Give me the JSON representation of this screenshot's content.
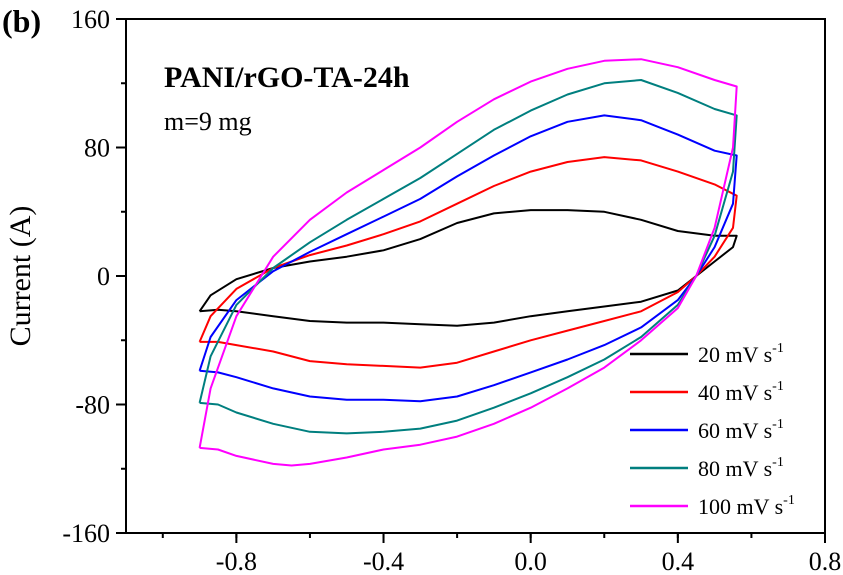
{
  "panel_label": "(b)",
  "chart_data": {
    "type": "line",
    "title": "PANI/rGO-TA-24h",
    "subtitle": "m=9 mg",
    "xlabel": "",
    "ylabel": "Current (A)",
    "xlim": [
      -1.1,
      0.8
    ],
    "ylim": [
      -160,
      160
    ],
    "x_ticks": [
      -0.8,
      -0.4,
      0.0,
      0.4,
      0.8
    ],
    "x_tick_labels": [
      "-0.8",
      "-0.4",
      "0.0",
      "0.4",
      "0.8"
    ],
    "y_ticks": [
      -160,
      -80,
      0,
      80,
      160
    ],
    "y_tick_labels": [
      "-160",
      "-80",
      "0",
      "80",
      "160"
    ],
    "grid": false,
    "legend_position": "bottom-right",
    "series": [
      {
        "name": "20 mV s",
        "unit_sup": "-1",
        "color": "#000000",
        "points": [
          [
            -0.9,
            -22
          ],
          [
            -0.85,
            -21
          ],
          [
            -0.8,
            -22
          ],
          [
            -0.7,
            -25
          ],
          [
            -0.6,
            -28
          ],
          [
            -0.5,
            -29
          ],
          [
            -0.4,
            -29
          ],
          [
            -0.3,
            -30
          ],
          [
            -0.2,
            -31
          ],
          [
            -0.1,
            -29
          ],
          [
            0.0,
            -25
          ],
          [
            0.1,
            -22
          ],
          [
            0.2,
            -19
          ],
          [
            0.3,
            -16
          ],
          [
            0.4,
            -9
          ],
          [
            0.45,
            0
          ],
          [
            0.5,
            9
          ],
          [
            0.55,
            18
          ],
          [
            0.56,
            25
          ],
          [
            0.5,
            25
          ],
          [
            0.4,
            28
          ],
          [
            0.3,
            35
          ],
          [
            0.2,
            40
          ],
          [
            0.1,
            41
          ],
          [
            0.0,
            41
          ],
          [
            -0.1,
            39
          ],
          [
            -0.2,
            33
          ],
          [
            -0.3,
            23
          ],
          [
            -0.4,
            16
          ],
          [
            -0.5,
            12
          ],
          [
            -0.6,
            9
          ],
          [
            -0.7,
            5
          ],
          [
            -0.8,
            -2
          ],
          [
            -0.87,
            -12
          ],
          [
            -0.9,
            -22
          ]
        ]
      },
      {
        "name": "40 mV s",
        "unit_sup": "-1",
        "color": "#ff0000",
        "points": [
          [
            -0.9,
            -41
          ],
          [
            -0.85,
            -41
          ],
          [
            -0.8,
            -43
          ],
          [
            -0.7,
            -47
          ],
          [
            -0.6,
            -53
          ],
          [
            -0.5,
            -55
          ],
          [
            -0.4,
            -56
          ],
          [
            -0.3,
            -57
          ],
          [
            -0.2,
            -54
          ],
          [
            -0.1,
            -47
          ],
          [
            0.0,
            -40
          ],
          [
            0.1,
            -34
          ],
          [
            0.2,
            -28
          ],
          [
            0.3,
            -22
          ],
          [
            0.4,
            -10
          ],
          [
            0.45,
            0
          ],
          [
            0.5,
            12
          ],
          [
            0.55,
            30
          ],
          [
            0.56,
            50
          ],
          [
            0.5,
            57
          ],
          [
            0.4,
            65
          ],
          [
            0.3,
            72
          ],
          [
            0.2,
            74
          ],
          [
            0.1,
            71
          ],
          [
            0.0,
            65
          ],
          [
            -0.1,
            56
          ],
          [
            -0.2,
            45
          ],
          [
            -0.3,
            34
          ],
          [
            -0.4,
            26
          ],
          [
            -0.5,
            19
          ],
          [
            -0.6,
            13
          ],
          [
            -0.7,
            5
          ],
          [
            -0.8,
            -8
          ],
          [
            -0.87,
            -25
          ],
          [
            -0.9,
            -41
          ]
        ]
      },
      {
        "name": "60 mV s",
        "unit_sup": "-1",
        "color": "#0000ff",
        "points": [
          [
            -0.9,
            -59
          ],
          [
            -0.85,
            -60
          ],
          [
            -0.8,
            -63
          ],
          [
            -0.7,
            -70
          ],
          [
            -0.6,
            -75
          ],
          [
            -0.5,
            -77
          ],
          [
            -0.4,
            -77
          ],
          [
            -0.3,
            -78
          ],
          [
            -0.2,
            -75
          ],
          [
            -0.1,
            -68
          ],
          [
            0.0,
            -60
          ],
          [
            0.1,
            -52
          ],
          [
            0.2,
            -43
          ],
          [
            0.3,
            -32
          ],
          [
            0.4,
            -15
          ],
          [
            0.45,
            0
          ],
          [
            0.5,
            18
          ],
          [
            0.55,
            45
          ],
          [
            0.56,
            75
          ],
          [
            0.5,
            78
          ],
          [
            0.4,
            88
          ],
          [
            0.3,
            97
          ],
          [
            0.2,
            100
          ],
          [
            0.1,
            96
          ],
          [
            0.0,
            87
          ],
          [
            -0.1,
            75
          ],
          [
            -0.2,
            62
          ],
          [
            -0.3,
            48
          ],
          [
            -0.4,
            37
          ],
          [
            -0.5,
            26
          ],
          [
            -0.6,
            15
          ],
          [
            -0.7,
            3
          ],
          [
            -0.8,
            -15
          ],
          [
            -0.87,
            -38
          ],
          [
            -0.9,
            -59
          ]
        ]
      },
      {
        "name": "80 mV s",
        "unit_sup": "-1",
        "color": "#007f7f",
        "points": [
          [
            -0.9,
            -79
          ],
          [
            -0.85,
            -80
          ],
          [
            -0.8,
            -85
          ],
          [
            -0.7,
            -92
          ],
          [
            -0.6,
            -97
          ],
          [
            -0.5,
            -98
          ],
          [
            -0.4,
            -97
          ],
          [
            -0.3,
            -95
          ],
          [
            -0.2,
            -90
          ],
          [
            -0.1,
            -82
          ],
          [
            0.0,
            -73
          ],
          [
            0.1,
            -63
          ],
          [
            0.2,
            -52
          ],
          [
            0.3,
            -38
          ],
          [
            0.4,
            -18
          ],
          [
            0.45,
            0
          ],
          [
            0.5,
            25
          ],
          [
            0.55,
            65
          ],
          [
            0.56,
            100
          ],
          [
            0.5,
            104
          ],
          [
            0.4,
            114
          ],
          [
            0.3,
            122
          ],
          [
            0.2,
            120
          ],
          [
            0.1,
            113
          ],
          [
            0.0,
            103
          ],
          [
            -0.1,
            91
          ],
          [
            -0.2,
            76
          ],
          [
            -0.3,
            61
          ],
          [
            -0.4,
            48
          ],
          [
            -0.5,
            35
          ],
          [
            -0.6,
            21
          ],
          [
            -0.7,
            5
          ],
          [
            -0.8,
            -18
          ],
          [
            -0.87,
            -50
          ],
          [
            -0.9,
            -79
          ]
        ]
      },
      {
        "name": "100 mV s",
        "unit_sup": "-1",
        "color": "#ff00ff",
        "points": [
          [
            -0.9,
            -107
          ],
          [
            -0.85,
            -108
          ],
          [
            -0.8,
            -112
          ],
          [
            -0.7,
            -117
          ],
          [
            -0.65,
            -118
          ],
          [
            -0.6,
            -117
          ],
          [
            -0.5,
            -113
          ],
          [
            -0.4,
            -108
          ],
          [
            -0.3,
            -105
          ],
          [
            -0.2,
            -100
          ],
          [
            -0.1,
            -92
          ],
          [
            0.0,
            -82
          ],
          [
            0.1,
            -70
          ],
          [
            0.2,
            -57
          ],
          [
            0.3,
            -40
          ],
          [
            0.4,
            -20
          ],
          [
            0.45,
            0
          ],
          [
            0.5,
            30
          ],
          [
            0.55,
            80
          ],
          [
            0.56,
            118
          ],
          [
            0.5,
            122
          ],
          [
            0.4,
            130
          ],
          [
            0.3,
            135
          ],
          [
            0.2,
            134
          ],
          [
            0.1,
            129
          ],
          [
            0.0,
            121
          ],
          [
            -0.1,
            110
          ],
          [
            -0.2,
            96
          ],
          [
            -0.3,
            80
          ],
          [
            -0.4,
            66
          ],
          [
            -0.5,
            52
          ],
          [
            -0.6,
            35
          ],
          [
            -0.7,
            12
          ],
          [
            -0.8,
            -25
          ],
          [
            -0.87,
            -70
          ],
          [
            -0.9,
            -107
          ]
        ]
      }
    ]
  }
}
